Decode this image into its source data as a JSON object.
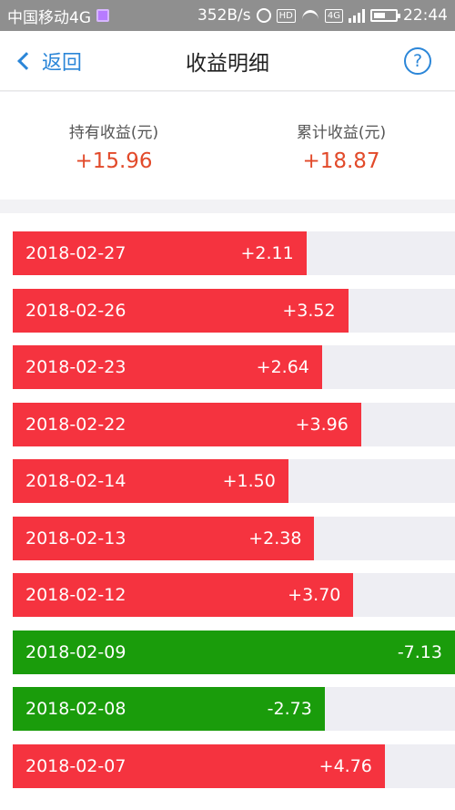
{
  "status_bar": {
    "carrier": "中国移动4G",
    "speed": "352B/s",
    "hd": "HD",
    "net": "4G",
    "time": "22:44"
  },
  "nav": {
    "back_label": "返回",
    "title": "收益明细",
    "help_label": "?"
  },
  "summary": {
    "holding_label": "持有收益(元)",
    "holding_value": "+15.96",
    "total_label": "累计收益(元)",
    "total_value": "+18.87"
  },
  "colors": {
    "positive": "#f5333f",
    "negative": "#1a9c0b",
    "accent": "#2b86d8"
  },
  "rows": [
    {
      "date": "2018-02-27",
      "value": "+2.11",
      "amount": 2.11
    },
    {
      "date": "2018-02-26",
      "value": "+3.52",
      "amount": 3.52
    },
    {
      "date": "2018-02-23",
      "value": "+2.64",
      "amount": 2.64
    },
    {
      "date": "2018-02-22",
      "value": "+3.96",
      "amount": 3.96
    },
    {
      "date": "2018-02-14",
      "value": "+1.50",
      "amount": 1.5
    },
    {
      "date": "2018-02-13",
      "value": "+2.38",
      "amount": 2.38
    },
    {
      "date": "2018-02-12",
      "value": "+3.70",
      "amount": 3.7
    },
    {
      "date": "2018-02-09",
      "value": "-7.13",
      "amount": -7.13
    },
    {
      "date": "2018-02-08",
      "value": "-2.73",
      "amount": -2.73
    },
    {
      "date": "2018-02-07",
      "value": "+4.76",
      "amount": 4.76
    }
  ]
}
